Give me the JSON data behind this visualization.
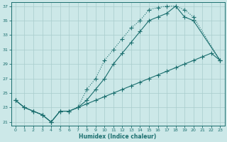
{
  "xlabel": "Humidex (Indice chaleur)",
  "bg_color": "#cce8e8",
  "grid_color": "#a8cccc",
  "line_color": "#1a6e6e",
  "xlim": [
    -0.5,
    23.5
  ],
  "ylim": [
    20.5,
    37.5
  ],
  "xticks": [
    0,
    1,
    2,
    3,
    4,
    5,
    6,
    7,
    8,
    9,
    10,
    11,
    12,
    13,
    14,
    15,
    16,
    17,
    18,
    19,
    20,
    21,
    22,
    23
  ],
  "yticks": [
    21,
    23,
    25,
    27,
    29,
    31,
    33,
    35,
    37
  ],
  "line1_x": [
    0,
    1,
    2,
    3,
    4,
    5,
    6,
    7,
    8,
    9,
    10,
    11,
    12,
    13,
    14,
    15,
    16,
    17,
    18,
    19,
    20,
    23
  ],
  "line1_y": [
    24.0,
    23.0,
    22.5,
    22.0,
    21.0,
    22.5,
    22.5,
    23.0,
    25.5,
    27.0,
    29.5,
    31.0,
    32.5,
    34.0,
    35.0,
    36.5,
    36.8,
    37.0,
    37.0,
    36.5,
    35.5,
    29.5
  ],
  "line2_x": [
    0,
    1,
    2,
    3,
    4,
    5,
    6,
    7,
    8,
    9,
    10,
    11,
    12,
    13,
    14,
    15,
    16,
    17,
    18,
    19,
    20,
    23
  ],
  "line2_y": [
    24.0,
    23.0,
    22.5,
    22.0,
    21.0,
    22.5,
    22.5,
    23.0,
    24.0,
    25.5,
    27.0,
    29.0,
    30.5,
    32.0,
    33.5,
    35.0,
    35.5,
    36.0,
    37.0,
    35.5,
    35.0,
    29.5
  ],
  "line3_x": [
    0,
    1,
    2,
    3,
    4,
    5,
    6,
    7,
    8,
    9,
    10,
    11,
    12,
    13,
    14,
    15,
    16,
    17,
    18,
    19,
    20,
    21,
    22,
    23
  ],
  "line3_y": [
    24.0,
    23.0,
    22.5,
    22.0,
    21.0,
    22.5,
    22.5,
    23.0,
    23.5,
    24.0,
    24.5,
    25.0,
    25.5,
    26.0,
    26.5,
    27.0,
    27.5,
    28.0,
    28.5,
    29.0,
    29.5,
    30.0,
    30.5,
    29.5
  ]
}
